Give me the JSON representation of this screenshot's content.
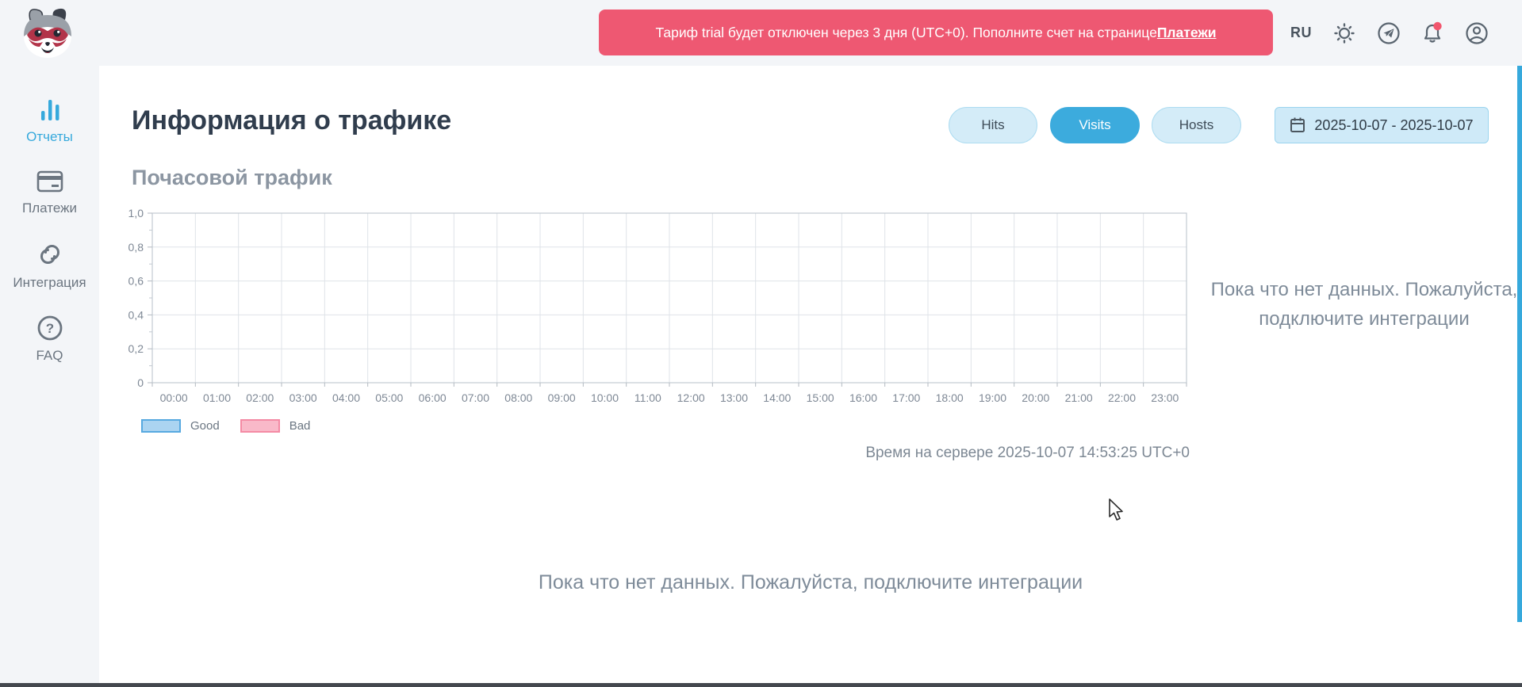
{
  "header": {
    "banner": {
      "text": "Тариф trial будет отключен через 3 дня (UTC+0). Пополните счет на странице ",
      "link_label": "Платежи"
    },
    "language": "RU"
  },
  "sidebar": {
    "items": [
      {
        "label": "Отчеты",
        "icon": "bar-chart-icon",
        "active": true
      },
      {
        "label": "Платежи",
        "icon": "credit-card-icon",
        "active": false
      },
      {
        "label": "Интеграция",
        "icon": "integration-link-icon",
        "active": false
      },
      {
        "label": "FAQ",
        "icon": "question-circle-icon",
        "active": false
      }
    ]
  },
  "main": {
    "title": "Информация о трафике",
    "section_title": "Почасовой трафик",
    "tabs": [
      {
        "label": "Hits",
        "active": false
      },
      {
        "label": "Visits",
        "active": true
      },
      {
        "label": "Hosts",
        "active": false
      }
    ],
    "date_range": "2025-10-07 - 2025-10-07",
    "empty_message_side": "Пока что нет данных. Пожалуйста, подключите интеграции",
    "empty_message_bottom": "Пока что нет данных. Пожалуйста, подключите интеграции",
    "server_time": "Время на сервере 2025-10-07 14:53:25 UTC+0"
  },
  "chart_data": {
    "type": "bar",
    "title": "Почасовой трафик",
    "categories": [
      "00:00",
      "01:00",
      "02:00",
      "03:00",
      "04:00",
      "05:00",
      "06:00",
      "07:00",
      "08:00",
      "09:00",
      "10:00",
      "11:00",
      "12:00",
      "13:00",
      "14:00",
      "15:00",
      "16:00",
      "17:00",
      "18:00",
      "19:00",
      "20:00",
      "21:00",
      "22:00",
      "23:00"
    ],
    "series": [
      {
        "name": "Good",
        "values": [
          0,
          0,
          0,
          0,
          0,
          0,
          0,
          0,
          0,
          0,
          0,
          0,
          0,
          0,
          0,
          0,
          0,
          0,
          0,
          0,
          0,
          0,
          0,
          0
        ],
        "fill": "#abd4f1",
        "border": "#57a9e0"
      },
      {
        "name": "Bad",
        "values": [
          0,
          0,
          0,
          0,
          0,
          0,
          0,
          0,
          0,
          0,
          0,
          0,
          0,
          0,
          0,
          0,
          0,
          0,
          0,
          0,
          0,
          0,
          0,
          0
        ],
        "fill": "#f9b9c9",
        "border": "#f48aa4"
      }
    ],
    "ylim": [
      0,
      1
    ],
    "yticks": [
      "0",
      "0,2",
      "0,4",
      "0,6",
      "0,8",
      "1,0"
    ],
    "grid": true,
    "legend_position": "bottom-left",
    "xlabel": "",
    "ylabel": ""
  },
  "colors": {
    "accent_blue": "#36a9dc",
    "banner_red": "#ee5872",
    "notification_red": "#f2566e",
    "background_gray": "#f3f5f8"
  }
}
